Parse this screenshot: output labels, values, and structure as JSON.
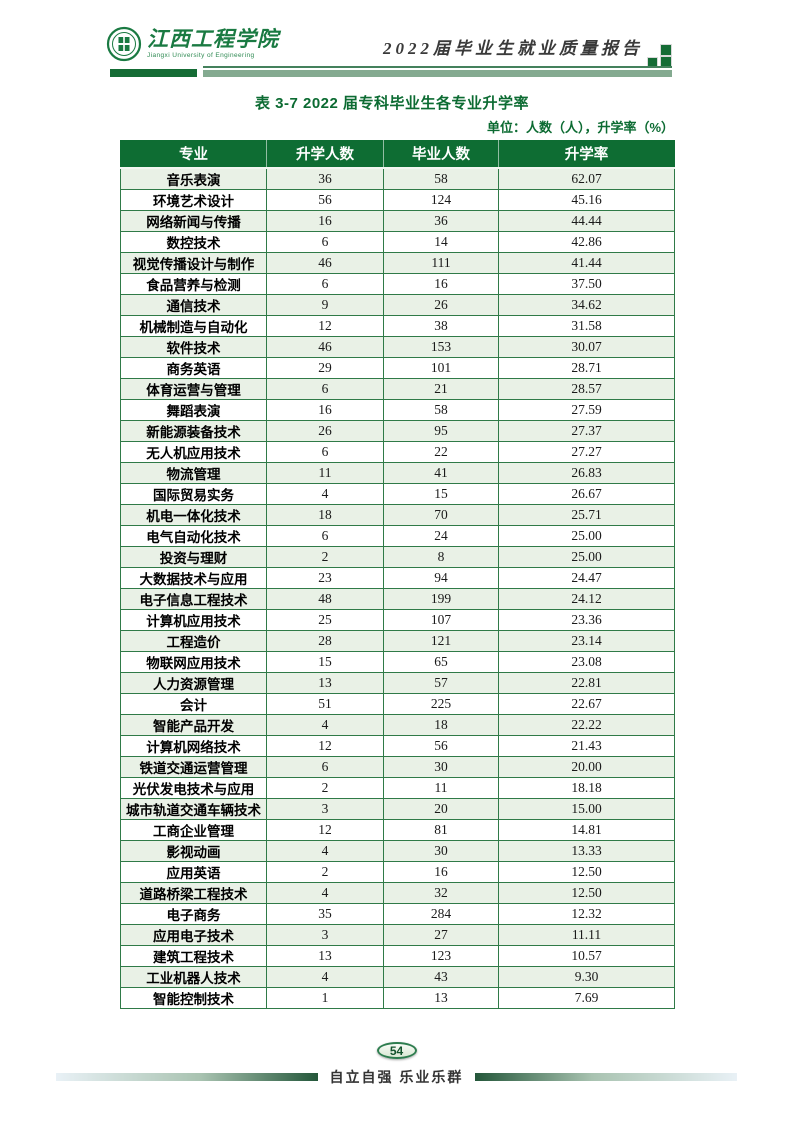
{
  "header": {
    "logo_cn": "江西工程学院",
    "logo_en": "Jiangxi University of Engineering",
    "report_title": "2022届毕业生就业质量报告"
  },
  "table": {
    "caption": "表 3-7 2022 届专科毕业生各专业升学率",
    "unit_note": "单位：人数（人），升学率（%）",
    "columns": [
      "专业",
      "升学人数",
      "毕业人数",
      "升学率"
    ],
    "rows": [
      [
        "音乐表演",
        "36",
        "58",
        "62.07"
      ],
      [
        "环境艺术设计",
        "56",
        "124",
        "45.16"
      ],
      [
        "网络新闻与传播",
        "16",
        "36",
        "44.44"
      ],
      [
        "数控技术",
        "6",
        "14",
        "42.86"
      ],
      [
        "视觉传播设计与制作",
        "46",
        "111",
        "41.44"
      ],
      [
        "食品营养与检测",
        "6",
        "16",
        "37.50"
      ],
      [
        "通信技术",
        "9",
        "26",
        "34.62"
      ],
      [
        "机械制造与自动化",
        "12",
        "38",
        "31.58"
      ],
      [
        "软件技术",
        "46",
        "153",
        "30.07"
      ],
      [
        "商务英语",
        "29",
        "101",
        "28.71"
      ],
      [
        "体育运营与管理",
        "6",
        "21",
        "28.57"
      ],
      [
        "舞蹈表演",
        "16",
        "58",
        "27.59"
      ],
      [
        "新能源装备技术",
        "26",
        "95",
        "27.37"
      ],
      [
        "无人机应用技术",
        "6",
        "22",
        "27.27"
      ],
      [
        "物流管理",
        "11",
        "41",
        "26.83"
      ],
      [
        "国际贸易实务",
        "4",
        "15",
        "26.67"
      ],
      [
        "机电一体化技术",
        "18",
        "70",
        "25.71"
      ],
      [
        "电气自动化技术",
        "6",
        "24",
        "25.00"
      ],
      [
        "投资与理财",
        "2",
        "8",
        "25.00"
      ],
      [
        "大数据技术与应用",
        "23",
        "94",
        "24.47"
      ],
      [
        "电子信息工程技术",
        "48",
        "199",
        "24.12"
      ],
      [
        "计算机应用技术",
        "25",
        "107",
        "23.36"
      ],
      [
        "工程造价",
        "28",
        "121",
        "23.14"
      ],
      [
        "物联网应用技术",
        "15",
        "65",
        "23.08"
      ],
      [
        "人力资源管理",
        "13",
        "57",
        "22.81"
      ],
      [
        "会计",
        "51",
        "225",
        "22.67"
      ],
      [
        "智能产品开发",
        "4",
        "18",
        "22.22"
      ],
      [
        "计算机网络技术",
        "12",
        "56",
        "21.43"
      ],
      [
        "铁道交通运营管理",
        "6",
        "30",
        "20.00"
      ],
      [
        "光伏发电技术与应用",
        "2",
        "11",
        "18.18"
      ],
      [
        "城市轨道交通车辆技术",
        "3",
        "20",
        "15.00"
      ],
      [
        "工商企业管理",
        "12",
        "81",
        "14.81"
      ],
      [
        "影视动画",
        "4",
        "30",
        "13.33"
      ],
      [
        "应用英语",
        "2",
        "16",
        "12.50"
      ],
      [
        "道路桥梁工程技术",
        "4",
        "32",
        "12.50"
      ],
      [
        "电子商务",
        "35",
        "284",
        "12.32"
      ],
      [
        "应用电子技术",
        "3",
        "27",
        "11.11"
      ],
      [
        "建筑工程技术",
        "13",
        "123",
        "10.57"
      ],
      [
        "工业机器人技术",
        "4",
        "43",
        "9.30"
      ],
      [
        "智能控制技术",
        "1",
        "13",
        "7.69"
      ]
    ]
  },
  "footer": {
    "page_number": "54",
    "slogan": "自立自强  乐业乐群"
  },
  "colors": {
    "brand_green": "#0e6d33",
    "sage_green": "#84aa90",
    "row_shade": "#e9f1e6",
    "border_green": "#2f7a47"
  }
}
